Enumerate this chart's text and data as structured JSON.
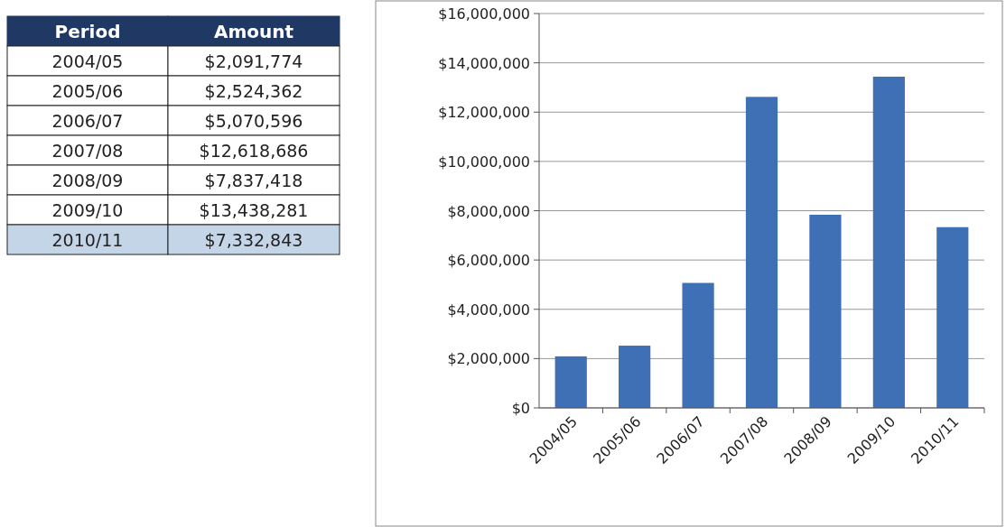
{
  "chart_data": [
    {
      "type": "other",
      "annotations": [
        "Period",
        "Amount",
        "2004/05",
        "$2,091,774",
        "2005/06",
        "$2,524,362",
        "2006/07",
        "$5,070,596",
        "2007/08",
        "$12,618,686",
        "2008/09",
        "$7,837,418",
        "2009/10",
        "$13,438,281",
        "2010/11",
        "$7,332,843"
      ]
    },
    {
      "type": "bar",
      "categories": [
        "2004/05",
        "2005/06",
        "2006/07",
        "2007/08",
        "2008/09",
        "2009/10",
        "2010/11"
      ],
      "values": [
        2091774,
        2524362,
        5070596,
        12618686,
        7837418,
        13438281,
        7332843
      ],
      "color": "#3f6fb5",
      "ylim": [
        0,
        16000000
      ],
      "yticks": [
        {
          "value": 0,
          "label": "$0"
        },
        {
          "value": 2000000,
          "label": "$2,000,000"
        },
        {
          "value": 4000000,
          "label": "$4,000,000"
        },
        {
          "value": 6000000,
          "label": "$6,000,000"
        },
        {
          "value": 8000000,
          "label": "$8,000,000"
        },
        {
          "value": 10000000,
          "label": "$10,000,000"
        },
        {
          "value": 12000000,
          "label": "$12,000,000"
        },
        {
          "value": 14000000,
          "label": "$14,000,000"
        },
        {
          "value": 16000000,
          "label": "$16,000,000"
        }
      ],
      "grid": "y"
    }
  ]
}
